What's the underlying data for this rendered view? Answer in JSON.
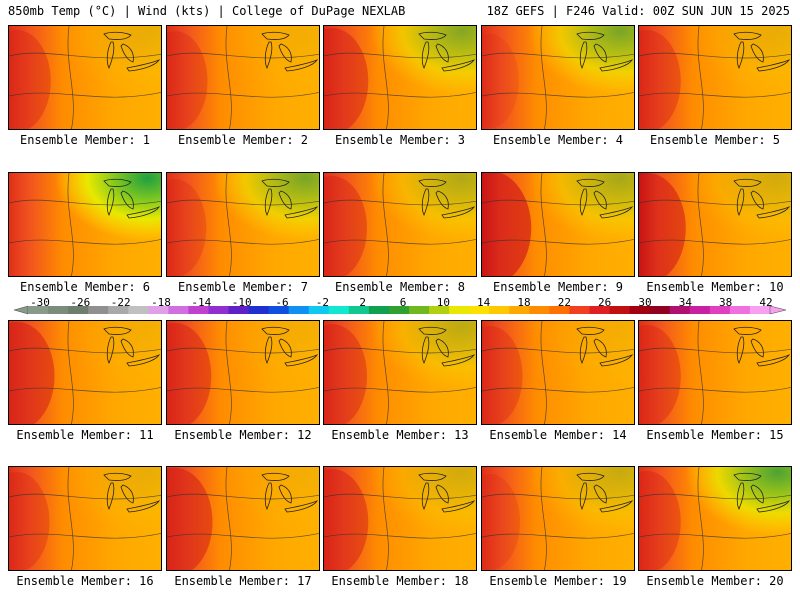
{
  "header": {
    "left": "850mb Temp (°C) | Wind (kts) | College of DuPage NEXLAB",
    "right": "18Z GEFS | F246 Valid: 00Z SUN JUN 15 2025"
  },
  "members": [
    {
      "label": "Ensemble Member: 1",
      "warmth": 0.55,
      "cool": 0.1
    },
    {
      "label": "Ensemble Member: 2",
      "warmth": 0.5,
      "cool": 0.05
    },
    {
      "label": "Ensemble Member: 3",
      "warmth": 0.65,
      "cool": 0.55
    },
    {
      "label": "Ensemble Member: 4",
      "warmth": 0.35,
      "cool": 0.6
    },
    {
      "label": "Ensemble Member: 5",
      "warmth": 0.55,
      "cool": 0.1
    },
    {
      "label": "Ensemble Member: 6",
      "warmth": 0.1,
      "cool": 1.0
    },
    {
      "label": "Ensemble Member: 7",
      "warmth": 0.45,
      "cool": 0.6
    },
    {
      "label": "Ensemble Member: 8",
      "warmth": 0.6,
      "cool": 0.35
    },
    {
      "label": "Ensemble Member: 9",
      "warmth": 0.85,
      "cool": 0.4
    },
    {
      "label": "Ensemble Member: 10",
      "warmth": 0.75,
      "cool": 0.2
    },
    {
      "label": "Ensemble Member: 11",
      "warmth": 0.7,
      "cool": 0.05
    },
    {
      "label": "Ensemble Member: 12",
      "warmth": 0.65,
      "cool": 0.05
    },
    {
      "label": "Ensemble Member: 13",
      "warmth": 0.6,
      "cool": 0.3
    },
    {
      "label": "Ensemble Member: 14",
      "warmth": 0.5,
      "cool": 0.05
    },
    {
      "label": "Ensemble Member: 15",
      "warmth": 0.55,
      "cool": 0.0
    },
    {
      "label": "Ensemble Member: 16",
      "warmth": 0.5,
      "cool": 0.1
    },
    {
      "label": "Ensemble Member: 17",
      "warmth": 0.7,
      "cool": 0.05
    },
    {
      "label": "Ensemble Member: 18",
      "warmth": 0.65,
      "cool": 0.2
    },
    {
      "label": "Ensemble Member: 19",
      "warmth": 0.4,
      "cool": 0.25
    },
    {
      "label": "Ensemble Member: 20",
      "warmth": 0.55,
      "cool": 0.8
    }
  ],
  "colorbar": {
    "labels": [
      "-30",
      "-26",
      "-22",
      "-18",
      "-14",
      "-10",
      "-6",
      "-2",
      "2",
      "6",
      "10",
      "14",
      "18",
      "22",
      "26",
      "30",
      "34",
      "38",
      "42"
    ],
    "colors": [
      "#8a9a8a",
      "#7c8c7c",
      "#6e7e6e",
      "#909090",
      "#a9a9a9",
      "#c0c0c0",
      "#e0a0e8",
      "#d070e0",
      "#c040d0",
      "#9030d0",
      "#6020c8",
      "#2030d0",
      "#1050e0",
      "#1090f0",
      "#10c8f0",
      "#10e8d0",
      "#10c890",
      "#10a050",
      "#30a030",
      "#70b820",
      "#b0d010",
      "#e8e800",
      "#ffe000",
      "#ffc800",
      "#ffa800",
      "#ff8c00",
      "#ff7000",
      "#f04020",
      "#e02020",
      "#c01010",
      "#a00010",
      "#900020",
      "#b01070",
      "#c820a0",
      "#e040c0",
      "#f070e0",
      "#f8a0f0"
    ]
  }
}
